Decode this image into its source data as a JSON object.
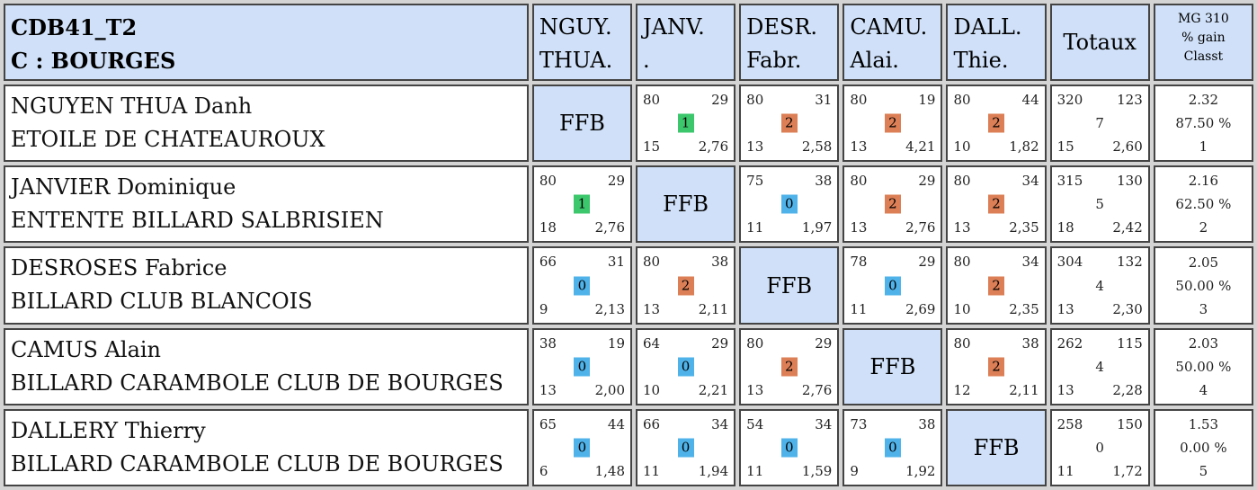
{
  "header": {
    "title_line1": "CDB41_T2",
    "title_line2": "C : BOURGES",
    "columns": [
      {
        "line1": "NGUY.",
        "line2": "THUA."
      },
      {
        "line1": "JANV.",
        "line2": "."
      },
      {
        "line1": "DESR.",
        "line2": "Fabr."
      },
      {
        "line1": "CAMU.",
        "line2": "Alai."
      },
      {
        "line1": "DALL.",
        "line2": "Thie."
      }
    ],
    "totals_label": "Totaux",
    "mg_label_line1": "MG 310",
    "mg_label_line2": "% gain",
    "mg_label_line3": "Classt"
  },
  "colors": {
    "header_bg": "#cfe0f8",
    "points_0": "#4fb3ea",
    "points_1": "#3cc76c",
    "points_2": "#dc7f56"
  },
  "ffb_label": "FFB",
  "rows": [
    {
      "name": "NGUYEN THUA Danh",
      "club": "ETOILE DE CHATEAUROUX",
      "cells": [
        null,
        {
          "tl": "80",
          "tr": "29",
          "pts": "1",
          "bl": "15",
          "br": "2,76"
        },
        {
          "tl": "80",
          "tr": "31",
          "pts": "2",
          "bl": "13",
          "br": "2,58"
        },
        {
          "tl": "80",
          "tr": "19",
          "pts": "2",
          "bl": "13",
          "br": "4,21"
        },
        {
          "tl": "80",
          "tr": "44",
          "pts": "2",
          "bl": "10",
          "br": "1,82"
        }
      ],
      "totals": {
        "tl": "320",
        "tr": "123",
        "mid": "7",
        "bl": "15",
        "br": "2,60"
      },
      "mg": {
        "avg": "2.32",
        "pct": "87.50 %",
        "rank": "1"
      }
    },
    {
      "name": "JANVIER Dominique",
      "club": "ENTENTE BILLARD SALBRISIEN",
      "cells": [
        {
          "tl": "80",
          "tr": "29",
          "pts": "1",
          "bl": "18",
          "br": "2,76"
        },
        null,
        {
          "tl": "75",
          "tr": "38",
          "pts": "0",
          "bl": "11",
          "br": "1,97"
        },
        {
          "tl": "80",
          "tr": "29",
          "pts": "2",
          "bl": "13",
          "br": "2,76"
        },
        {
          "tl": "80",
          "tr": "34",
          "pts": "2",
          "bl": "13",
          "br": "2,35"
        }
      ],
      "totals": {
        "tl": "315",
        "tr": "130",
        "mid": "5",
        "bl": "18",
        "br": "2,42"
      },
      "mg": {
        "avg": "2.16",
        "pct": "62.50 %",
        "rank": "2"
      }
    },
    {
      "name": "DESROSES Fabrice",
      "club": "BILLARD CLUB BLANCOIS",
      "cells": [
        {
          "tl": "66",
          "tr": "31",
          "pts": "0",
          "bl": "9",
          "br": "2,13"
        },
        {
          "tl": "80",
          "tr": "38",
          "pts": "2",
          "bl": "13",
          "br": "2,11"
        },
        null,
        {
          "tl": "78",
          "tr": "29",
          "pts": "0",
          "bl": "11",
          "br": "2,69"
        },
        {
          "tl": "80",
          "tr": "34",
          "pts": "2",
          "bl": "10",
          "br": "2,35"
        }
      ],
      "totals": {
        "tl": "304",
        "tr": "132",
        "mid": "4",
        "bl": "13",
        "br": "2,30"
      },
      "mg": {
        "avg": "2.05",
        "pct": "50.00 %",
        "rank": "3"
      }
    },
    {
      "name": "CAMUS Alain",
      "club": "BILLARD CARAMBOLE CLUB DE BOURGES",
      "cells": [
        {
          "tl": "38",
          "tr": "19",
          "pts": "0",
          "bl": "13",
          "br": "2,00"
        },
        {
          "tl": "64",
          "tr": "29",
          "pts": "0",
          "bl": "10",
          "br": "2,21"
        },
        {
          "tl": "80",
          "tr": "29",
          "pts": "2",
          "bl": "13",
          "br": "2,76"
        },
        null,
        {
          "tl": "80",
          "tr": "38",
          "pts": "2",
          "bl": "12",
          "br": "2,11"
        }
      ],
      "totals": {
        "tl": "262",
        "tr": "115",
        "mid": "4",
        "bl": "13",
        "br": "2,28"
      },
      "mg": {
        "avg": "2.03",
        "pct": "50.00 %",
        "rank": "4"
      }
    },
    {
      "name": "DALLERY Thierry",
      "club": "BILLARD CARAMBOLE CLUB DE BOURGES",
      "cells": [
        {
          "tl": "65",
          "tr": "44",
          "pts": "0",
          "bl": "6",
          "br": "1,48"
        },
        {
          "tl": "66",
          "tr": "34",
          "pts": "0",
          "bl": "11",
          "br": "1,94"
        },
        {
          "tl": "54",
          "tr": "34",
          "pts": "0",
          "bl": "11",
          "br": "1,59"
        },
        {
          "tl": "73",
          "tr": "38",
          "pts": "0",
          "bl": "9",
          "br": "1,92"
        },
        null
      ],
      "totals": {
        "tl": "258",
        "tr": "150",
        "mid": "0",
        "bl": "11",
        "br": "1,72"
      },
      "mg": {
        "avg": "1.53",
        "pct": "0.00 %",
        "rank": "5"
      }
    }
  ]
}
